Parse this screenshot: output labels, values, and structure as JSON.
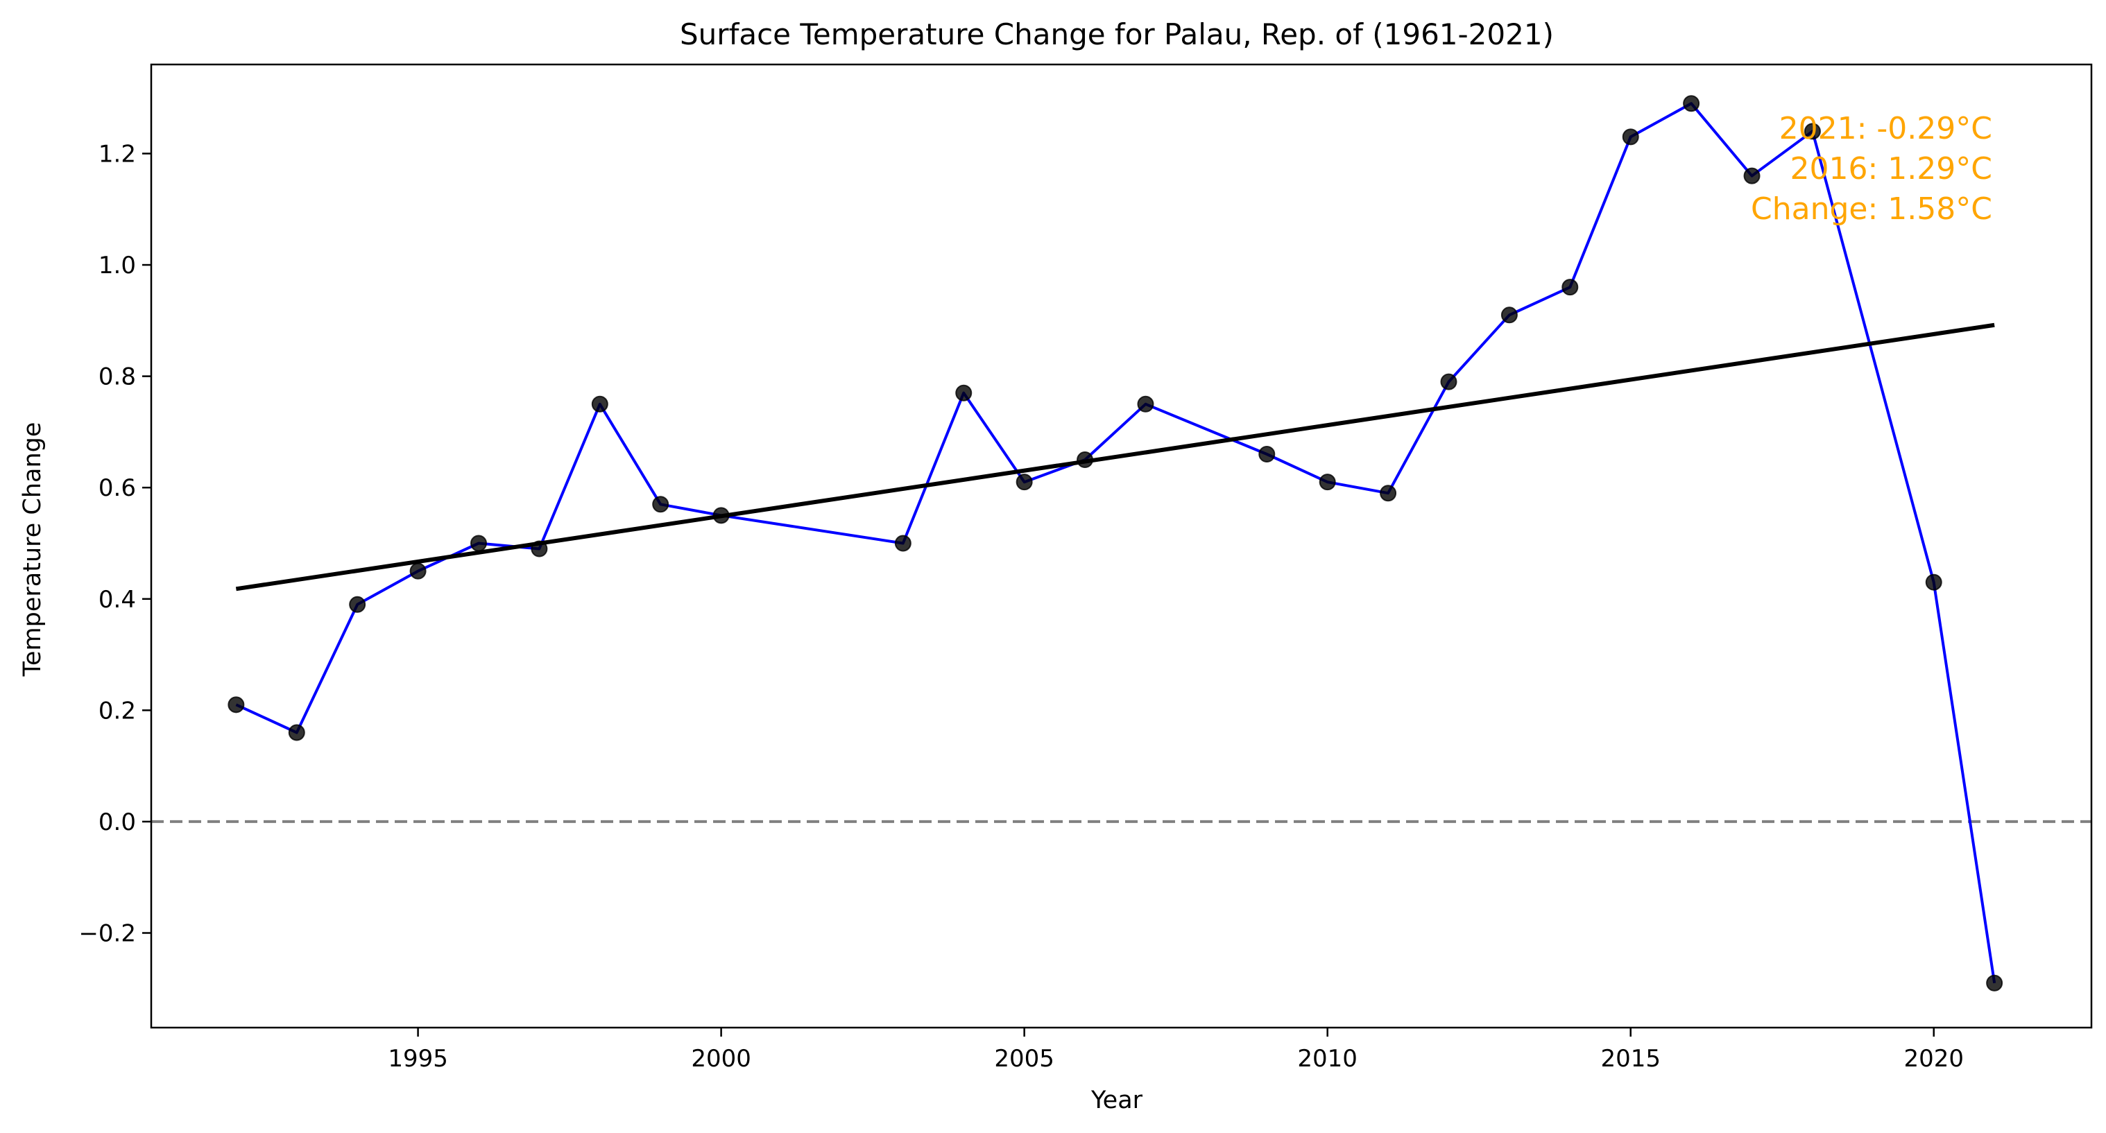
{
  "chart_data": {
    "type": "line",
    "title": "Surface Temperature Change for Palau, Rep. of (1961-2021)",
    "xlabel": "Year",
    "ylabel": "Temperature Change",
    "xlim": [
      1990.6,
      2022.6
    ],
    "ylim": [
      -0.37,
      1.36
    ],
    "x_ticks": [
      1995,
      2000,
      2005,
      2010,
      2015,
      2020
    ],
    "y_ticks": [
      -0.2,
      0.0,
      0.2,
      0.4,
      0.6,
      0.8,
      1.0,
      1.2
    ],
    "y_tick_labels": [
      "−0.2",
      "0.0",
      "0.2",
      "0.4",
      "0.6",
      "0.8",
      "1.0",
      "1.2"
    ],
    "grid": false,
    "series": [
      {
        "color": "#0000FF",
        "marker_color": "#000000",
        "x": [
          1992,
          1993,
          1994,
          1995,
          1996,
          1997,
          1998,
          1999,
          2000,
          2003,
          2004,
          2005,
          2006,
          2007,
          2009,
          2010,
          2011,
          2012,
          2013,
          2014,
          2015,
          2016,
          2017,
          2018,
          2020,
          2021
        ],
        "y": [
          0.21,
          0.16,
          0.39,
          0.45,
          0.5,
          0.49,
          0.75,
          0.57,
          0.55,
          0.5,
          0.77,
          0.61,
          0.65,
          0.75,
          0.66,
          0.61,
          0.59,
          0.79,
          0.91,
          0.96,
          1.23,
          1.29,
          1.16,
          1.24,
          0.43,
          -0.29
        ]
      }
    ],
    "trend_line": {
      "color": "#000000",
      "x": [
        1992,
        2021
      ],
      "y": [
        0.418,
        0.892
      ]
    },
    "reference_line": {
      "y": 0.0,
      "color": "#808080",
      "style": "dashed"
    },
    "annotation": {
      "color": "#FFA500",
      "lines": [
        "2021: -0.29°C",
        "2016: 1.29°C",
        "Change: 1.58°C"
      ]
    }
  }
}
